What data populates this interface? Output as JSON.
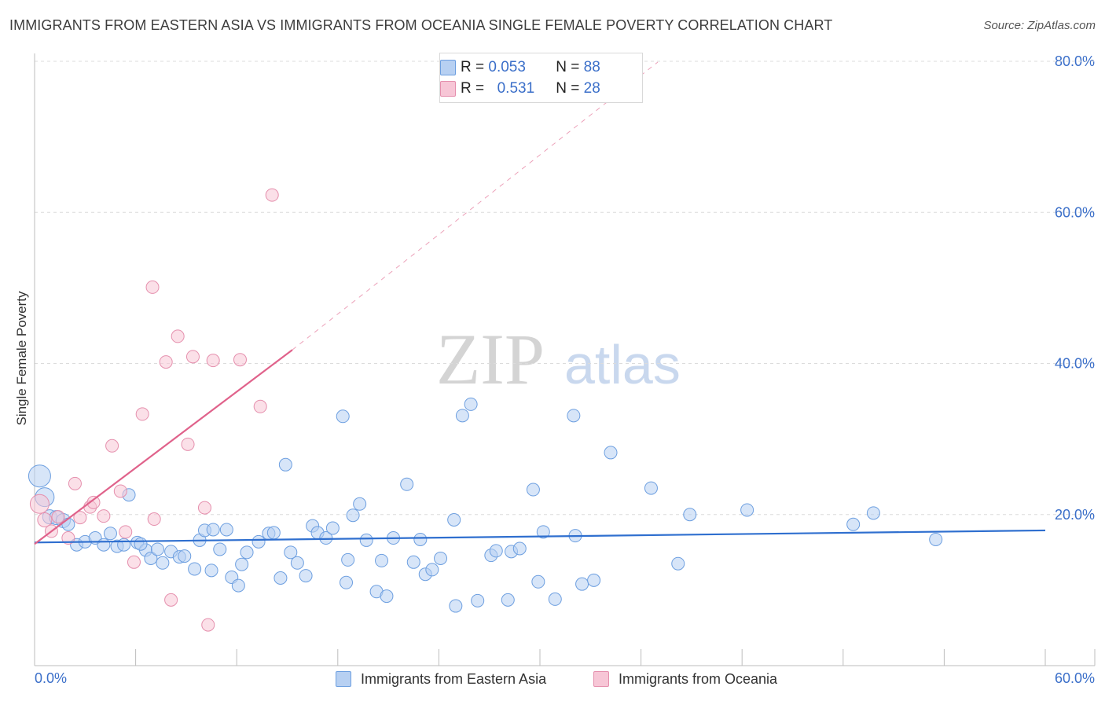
{
  "chart_data": {
    "type": "scatter",
    "title": "IMMIGRANTS FROM EASTERN ASIA VS IMMIGRANTS FROM OCEANIA SINGLE FEMALE POVERTY CORRELATION CHART",
    "source": "Source: ZipAtlas.com",
    "xlabel": "",
    "ylabel": "Single Female Poverty",
    "xlim": [
      0,
      60
    ],
    "ylim": [
      0,
      80
    ],
    "x_tick_labels": [
      "0.0%",
      "60.0%"
    ],
    "y_ticks": [
      20,
      40,
      60,
      80
    ],
    "y_tick_labels": [
      "20.0%",
      "40.0%",
      "60.0%",
      "80.0%"
    ],
    "grid": true,
    "watermark": {
      "zip": "ZIP",
      "atlas": "atlas"
    },
    "legend": [
      {
        "r_label": "R =",
        "r_value": "0.053",
        "n_label": "N =",
        "n_value": "88"
      },
      {
        "r_label": "R =",
        "r_value": "0.531",
        "n_label": "N =",
        "n_value": "28"
      }
    ],
    "colors": {
      "eastern_asia_fill": "#b7d0f2",
      "eastern_asia_stroke": "#6d9fe0",
      "eastern_asia_line": "#2f6fcf",
      "oceania_fill": "#f7c6d6",
      "oceania_stroke": "#e58fad",
      "oceania_line": "#e0628b",
      "axis_text": "#3b6fc9"
    },
    "series": [
      {
        "name": "Immigrants from Eastern Asia",
        "trend": {
          "x0": 0,
          "y0": 16.3,
          "x1": 60,
          "y1": 17.9
        },
        "points": [
          [
            0.3,
            25.1,
            14
          ],
          [
            0.6,
            22.3,
            12
          ],
          [
            0.9,
            19.7,
            9
          ],
          [
            1.3,
            19.6,
            9
          ],
          [
            1.7,
            19.2,
            9
          ],
          [
            2.0,
            18.7,
            8
          ],
          [
            2.5,
            16.0,
            8
          ],
          [
            3.0,
            16.4,
            8
          ],
          [
            3.6,
            16.9,
            8
          ],
          [
            4.1,
            16.0,
            8
          ],
          [
            4.5,
            17.5,
            8
          ],
          [
            4.9,
            15.8,
            8
          ],
          [
            5.3,
            16.0,
            8
          ],
          [
            5.6,
            22.6,
            8
          ],
          [
            6.1,
            16.3,
            8
          ],
          [
            6.6,
            15.3,
            8
          ],
          [
            6.9,
            14.2,
            8
          ],
          [
            7.3,
            15.4,
            8
          ],
          [
            7.6,
            13.6,
            8
          ],
          [
            8.1,
            15.1,
            8
          ],
          [
            8.6,
            14.4,
            8
          ],
          [
            8.9,
            14.5,
            8
          ],
          [
            9.5,
            12.8,
            8
          ],
          [
            9.8,
            16.6,
            8
          ],
          [
            10.1,
            17.9,
            8
          ],
          [
            10.5,
            12.6,
            8
          ],
          [
            11.0,
            15.4,
            8
          ],
          [
            11.4,
            18.0,
            8
          ],
          [
            11.7,
            11.7,
            8
          ],
          [
            12.1,
            10.6,
            8
          ],
          [
            12.6,
            15.0,
            8
          ],
          [
            13.3,
            16.4,
            8
          ],
          [
            13.9,
            17.5,
            8
          ],
          [
            14.2,
            17.6,
            8
          ],
          [
            14.6,
            11.6,
            8
          ],
          [
            14.9,
            26.6,
            8
          ],
          [
            15.2,
            15.0,
            8
          ],
          [
            15.6,
            13.6,
            8
          ],
          [
            16.1,
            11.9,
            8
          ],
          [
            16.5,
            18.5,
            8
          ],
          [
            16.8,
            17.6,
            8
          ],
          [
            17.3,
            16.9,
            8
          ],
          [
            17.7,
            18.2,
            8
          ],
          [
            18.3,
            33.0,
            8
          ],
          [
            18.5,
            11.0,
            8
          ],
          [
            18.9,
            19.9,
            8
          ],
          [
            19.3,
            21.4,
            8
          ],
          [
            19.7,
            16.6,
            8
          ],
          [
            20.3,
            9.8,
            8
          ],
          [
            20.6,
            13.9,
            8
          ],
          [
            20.9,
            9.2,
            8
          ],
          [
            21.3,
            16.9,
            8
          ],
          [
            22.1,
            24.0,
            8
          ],
          [
            22.5,
            13.7,
            8
          ],
          [
            22.9,
            16.7,
            8
          ],
          [
            23.2,
            12.1,
            8
          ],
          [
            23.6,
            12.7,
            8
          ],
          [
            24.1,
            14.2,
            8
          ],
          [
            24.9,
            19.3,
            8
          ],
          [
            25.0,
            7.9,
            8
          ],
          [
            25.4,
            33.1,
            8
          ],
          [
            25.9,
            34.6,
            8
          ],
          [
            26.3,
            8.6,
            8
          ],
          [
            27.1,
            14.6,
            8
          ],
          [
            27.4,
            15.2,
            8
          ],
          [
            28.1,
            8.7,
            8
          ],
          [
            28.3,
            15.1,
            8
          ],
          [
            28.8,
            15.5,
            8
          ],
          [
            29.6,
            23.3,
            8
          ],
          [
            29.9,
            11.1,
            8
          ],
          [
            30.2,
            17.7,
            8
          ],
          [
            30.9,
            8.8,
            8
          ],
          [
            32.0,
            33.1,
            8
          ],
          [
            32.1,
            17.2,
            8
          ],
          [
            32.5,
            10.8,
            8
          ],
          [
            33.2,
            11.3,
            8
          ],
          [
            34.2,
            28.2,
            8
          ],
          [
            36.6,
            23.5,
            8
          ],
          [
            38.2,
            13.5,
            8
          ],
          [
            38.9,
            20.0,
            8
          ],
          [
            42.3,
            20.6,
            8
          ],
          [
            48.6,
            18.7,
            8
          ],
          [
            49.8,
            20.2,
            8
          ],
          [
            53.5,
            16.7,
            8
          ],
          [
            12.3,
            13.4,
            8
          ],
          [
            6.3,
            16.1,
            8
          ],
          [
            18.6,
            14.0,
            8
          ],
          [
            10.6,
            18.0,
            8
          ]
        ]
      },
      {
        "name": "Immigrants from Oceania",
        "trend": {
          "x0": 0,
          "y0": 16.1,
          "x1": 15.3,
          "y1": 41.8
        },
        "trend_dashed": {
          "x0": 15.3,
          "y0": 41.8,
          "x1": 37.0,
          "y1": 79.9
        },
        "points": [
          [
            0.3,
            21.4,
            12
          ],
          [
            0.6,
            19.3,
            9
          ],
          [
            1.0,
            17.8,
            8
          ],
          [
            1.4,
            19.7,
            8
          ],
          [
            2.0,
            16.9,
            8
          ],
          [
            2.4,
            24.1,
            8
          ],
          [
            2.7,
            19.6,
            8
          ],
          [
            3.3,
            21.0,
            8
          ],
          [
            3.5,
            21.6,
            8
          ],
          [
            4.1,
            19.8,
            8
          ],
          [
            4.6,
            29.1,
            8
          ],
          [
            5.1,
            23.1,
            8
          ],
          [
            5.4,
            17.7,
            8
          ],
          [
            5.9,
            13.7,
            8
          ],
          [
            6.4,
            33.3,
            8
          ],
          [
            7.1,
            19.4,
            8
          ],
          [
            7.0,
            50.1,
            8
          ],
          [
            7.8,
            40.2,
            8
          ],
          [
            8.1,
            8.7,
            8
          ],
          [
            8.5,
            43.6,
            8
          ],
          [
            9.1,
            29.3,
            8
          ],
          [
            9.4,
            40.9,
            8
          ],
          [
            10.1,
            20.9,
            8
          ],
          [
            10.3,
            5.4,
            8
          ],
          [
            10.6,
            40.4,
            8
          ],
          [
            12.2,
            40.5,
            8
          ],
          [
            13.4,
            34.3,
            8
          ],
          [
            14.1,
            62.3,
            8
          ]
        ]
      }
    ]
  },
  "bottom_legend": {
    "eastern_asia": "Immigrants from Eastern Asia",
    "oceania": "Immigrants from Oceania"
  }
}
